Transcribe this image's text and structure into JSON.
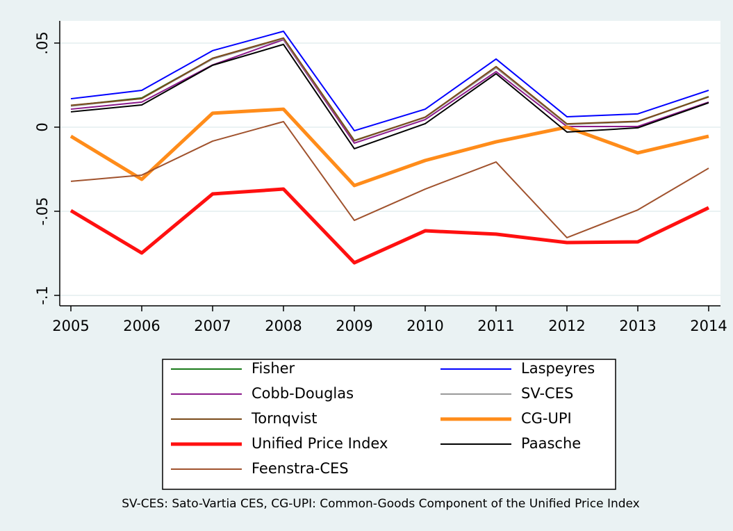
{
  "chart_data": {
    "type": "line",
    "x": [
      2005,
      2006,
      2007,
      2008,
      2009,
      2010,
      2011,
      2012,
      2013,
      2014
    ],
    "xlim": [
      2004.843,
      2014.167
    ],
    "xticks": [
      2005,
      2006,
      2007,
      2008,
      2009,
      2010,
      2011,
      2012,
      2013,
      2014
    ],
    "ylim": [
      -0.1062,
      0.0632
    ],
    "yticks": [
      {
        "value": -0.1,
        "label": "-.1"
      },
      {
        "value": -0.05,
        "label": "-.05"
      },
      0,
      {
        "value": 0.05,
        "label": ".05"
      }
    ],
    "grid": true,
    "legend": "bottom",
    "legend_columns": 2,
    "note": "SV-CES: Sato-Vartia CES, CG-UPI: Common-Goods Component of the Unified Price Index",
    "series": [
      {
        "name": "Fisher",
        "color": "#1a7a1a",
        "width": 2,
        "values": [
          0.0128,
          0.0174,
          0.0409,
          0.0529,
          -0.0079,
          0.0058,
          0.0355,
          0.0017,
          0.0033,
          0.0182
        ]
      },
      {
        "name": "Laspeyres",
        "color": "#0000ff",
        "width": 2,
        "values": [
          0.0169,
          0.0219,
          0.0455,
          0.057,
          -0.0021,
          0.0107,
          0.0405,
          0.0062,
          0.0079,
          0.0219
        ]
      },
      {
        "name": "Cobb-Douglas",
        "color": "#8b1a8b",
        "width": 2,
        "values": [
          0.0107,
          0.0149,
          0.037,
          0.052,
          -0.0095,
          0.0045,
          0.033,
          0.0004,
          0.0004,
          0.0149
        ]
      },
      {
        "name": "SV-CES",
        "color": "#999999",
        "width": 2,
        "values": [
          0.0125,
          0.017,
          0.0405,
          0.0525,
          -0.0082,
          0.0058,
          0.0352,
          0.0016,
          0.0032,
          0.018
        ]
      },
      {
        "name": "Tornqvist",
        "color": "#7a4a1a",
        "width": 2,
        "values": [
          0.013,
          0.017,
          0.041,
          0.053,
          -0.008,
          0.006,
          0.036,
          0.002,
          0.0035,
          0.018
        ]
      },
      {
        "name": "CG-UPI",
        "color": "#ff8c1a",
        "width": 5,
        "values": [
          -0.0054,
          -0.031,
          0.0083,
          0.0107,
          -0.0347,
          -0.0198,
          -0.0087,
          0,
          -0.0153,
          -0.0054
        ]
      },
      {
        "name": "Unified Price Index",
        "color": "#ff1010",
        "width": 5,
        "values": [
          -0.0496,
          -0.0748,
          -0.0397,
          -0.0368,
          -0.0806,
          -0.0616,
          -0.0636,
          -0.0686,
          -0.0682,
          -0.0479
        ]
      },
      {
        "name": "Paasche",
        "color": "#000000",
        "width": 2,
        "values": [
          0.0091,
          0.0132,
          0.0368,
          0.0492,
          -0.0128,
          0.0021,
          0.0318,
          -0.0029,
          -0.0004,
          0.0145
        ]
      },
      {
        "name": "Feenstra-CES",
        "color": "#a0522d",
        "width": 2,
        "values": [
          -0.0322,
          -0.0285,
          -0.0083,
          0.0033,
          -0.0554,
          -0.0368,
          -0.0207,
          -0.0657,
          -0.0492,
          -0.0244
        ]
      }
    ]
  }
}
